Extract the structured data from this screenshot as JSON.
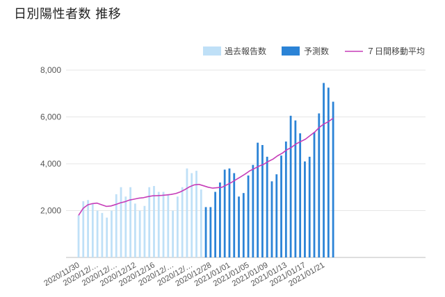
{
  "chart_data": {
    "type": "bar",
    "title": "日別陽性者数 推移",
    "ylim": [
      0,
      8000
    ],
    "yticks": [
      2000,
      4000,
      6000,
      8000
    ],
    "ytick_labels": [
      "2,000",
      "4,000",
      "6,000",
      "8,000"
    ],
    "grid": true,
    "legend_position": "top-right",
    "colors": {
      "actual": "#bfe0f7",
      "forecast": "#2b83d6",
      "average": "#c63cb8"
    },
    "xtick_labels": [
      "2020/11/30",
      "2020/12/…",
      "2020/12/…",
      "2020/12/12",
      "2020/12/16",
      "2020/12/…",
      "2020/12/…",
      "2020/12/28",
      "2021/01/01",
      "2021/01/05",
      "2021/01/09",
      "2021/01/13",
      "2021/01/17",
      "2021/01/21"
    ],
    "series": [
      {
        "name": "過去報告数",
        "kind": "bar",
        "values": [
          1800,
          2400,
          2450,
          2300,
          2000,
          1900,
          1700,
          2000,
          2700,
          3000,
          2600,
          3000,
          2300,
          2000,
          2200,
          3000,
          3050,
          2800,
          2800,
          2700,
          2000,
          2600,
          3000,
          3800,
          3600,
          3700,
          2900
        ]
      },
      {
        "name": "予測数",
        "kind": "bar",
        "values": [
          2150,
          2150,
          2800,
          3200,
          3750,
          3800,
          3600,
          2600,
          2750,
          3500,
          3950,
          4900,
          4800,
          4300,
          3250,
          3550,
          4350,
          4950,
          6050,
          5850,
          5300,
          4100,
          4300,
          5350,
          6150,
          7450,
          7250,
          6650
        ]
      },
      {
        "name": "７日間移動平均",
        "kind": "line",
        "values": [
          1800,
          2100,
          2250,
          2300,
          2320,
          2250,
          2180,
          2200,
          2260,
          2330,
          2380,
          2450,
          2490,
          2530,
          2550,
          2600,
          2630,
          2640,
          2650,
          2670,
          2690,
          2730,
          2800,
          2900,
          3020,
          3100,
          3120,
          3060,
          3000,
          2960,
          2980,
          3000,
          3100,
          3200,
          3320,
          3440,
          3560,
          3700,
          3800,
          3900,
          3980,
          4100,
          4200,
          4340,
          4450,
          4600,
          4700,
          4850,
          4950,
          5050,
          5200,
          5350,
          5550,
          5700,
          5800,
          5950
        ]
      }
    ]
  }
}
